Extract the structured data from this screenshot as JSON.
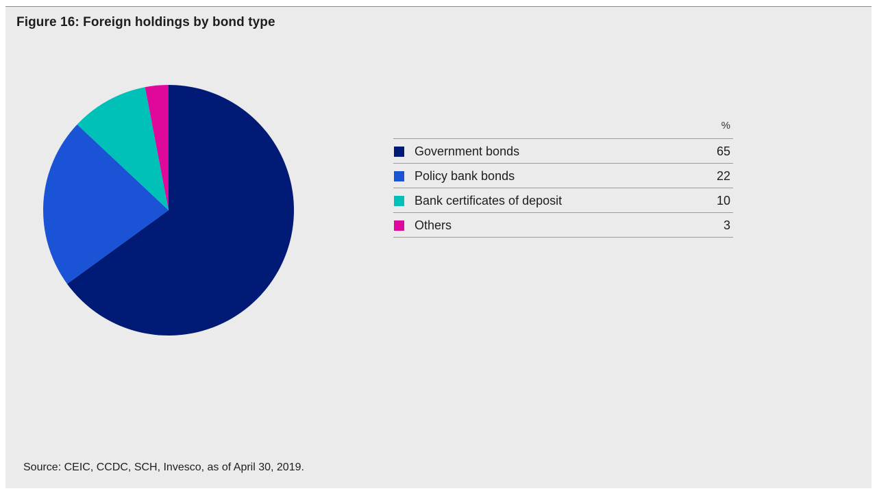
{
  "title": "Figure 16: Foreign holdings by bond type",
  "source": "Source: CEIC, CCDC, SCH, Invesco, as of April 30, 2019.",
  "colors": {
    "background": "#ebebeb",
    "government": "#001a75",
    "policy": "#1a53d6",
    "bank_cd": "#00c1b8",
    "others": "#e0089a"
  },
  "chart_data": {
    "type": "pie",
    "unit_label": "%",
    "categories": [
      "Government bonds",
      "Policy bank bonds",
      "Bank certificates of deposit",
      "Others"
    ],
    "values": [
      65,
      22,
      10,
      3
    ],
    "colors": [
      "#001a75",
      "#1a53d6",
      "#00c1b8",
      "#e0089a"
    ],
    "start_angle": "12 o'clock",
    "direction": "clockwise",
    "legend_placement": "right (table)"
  }
}
